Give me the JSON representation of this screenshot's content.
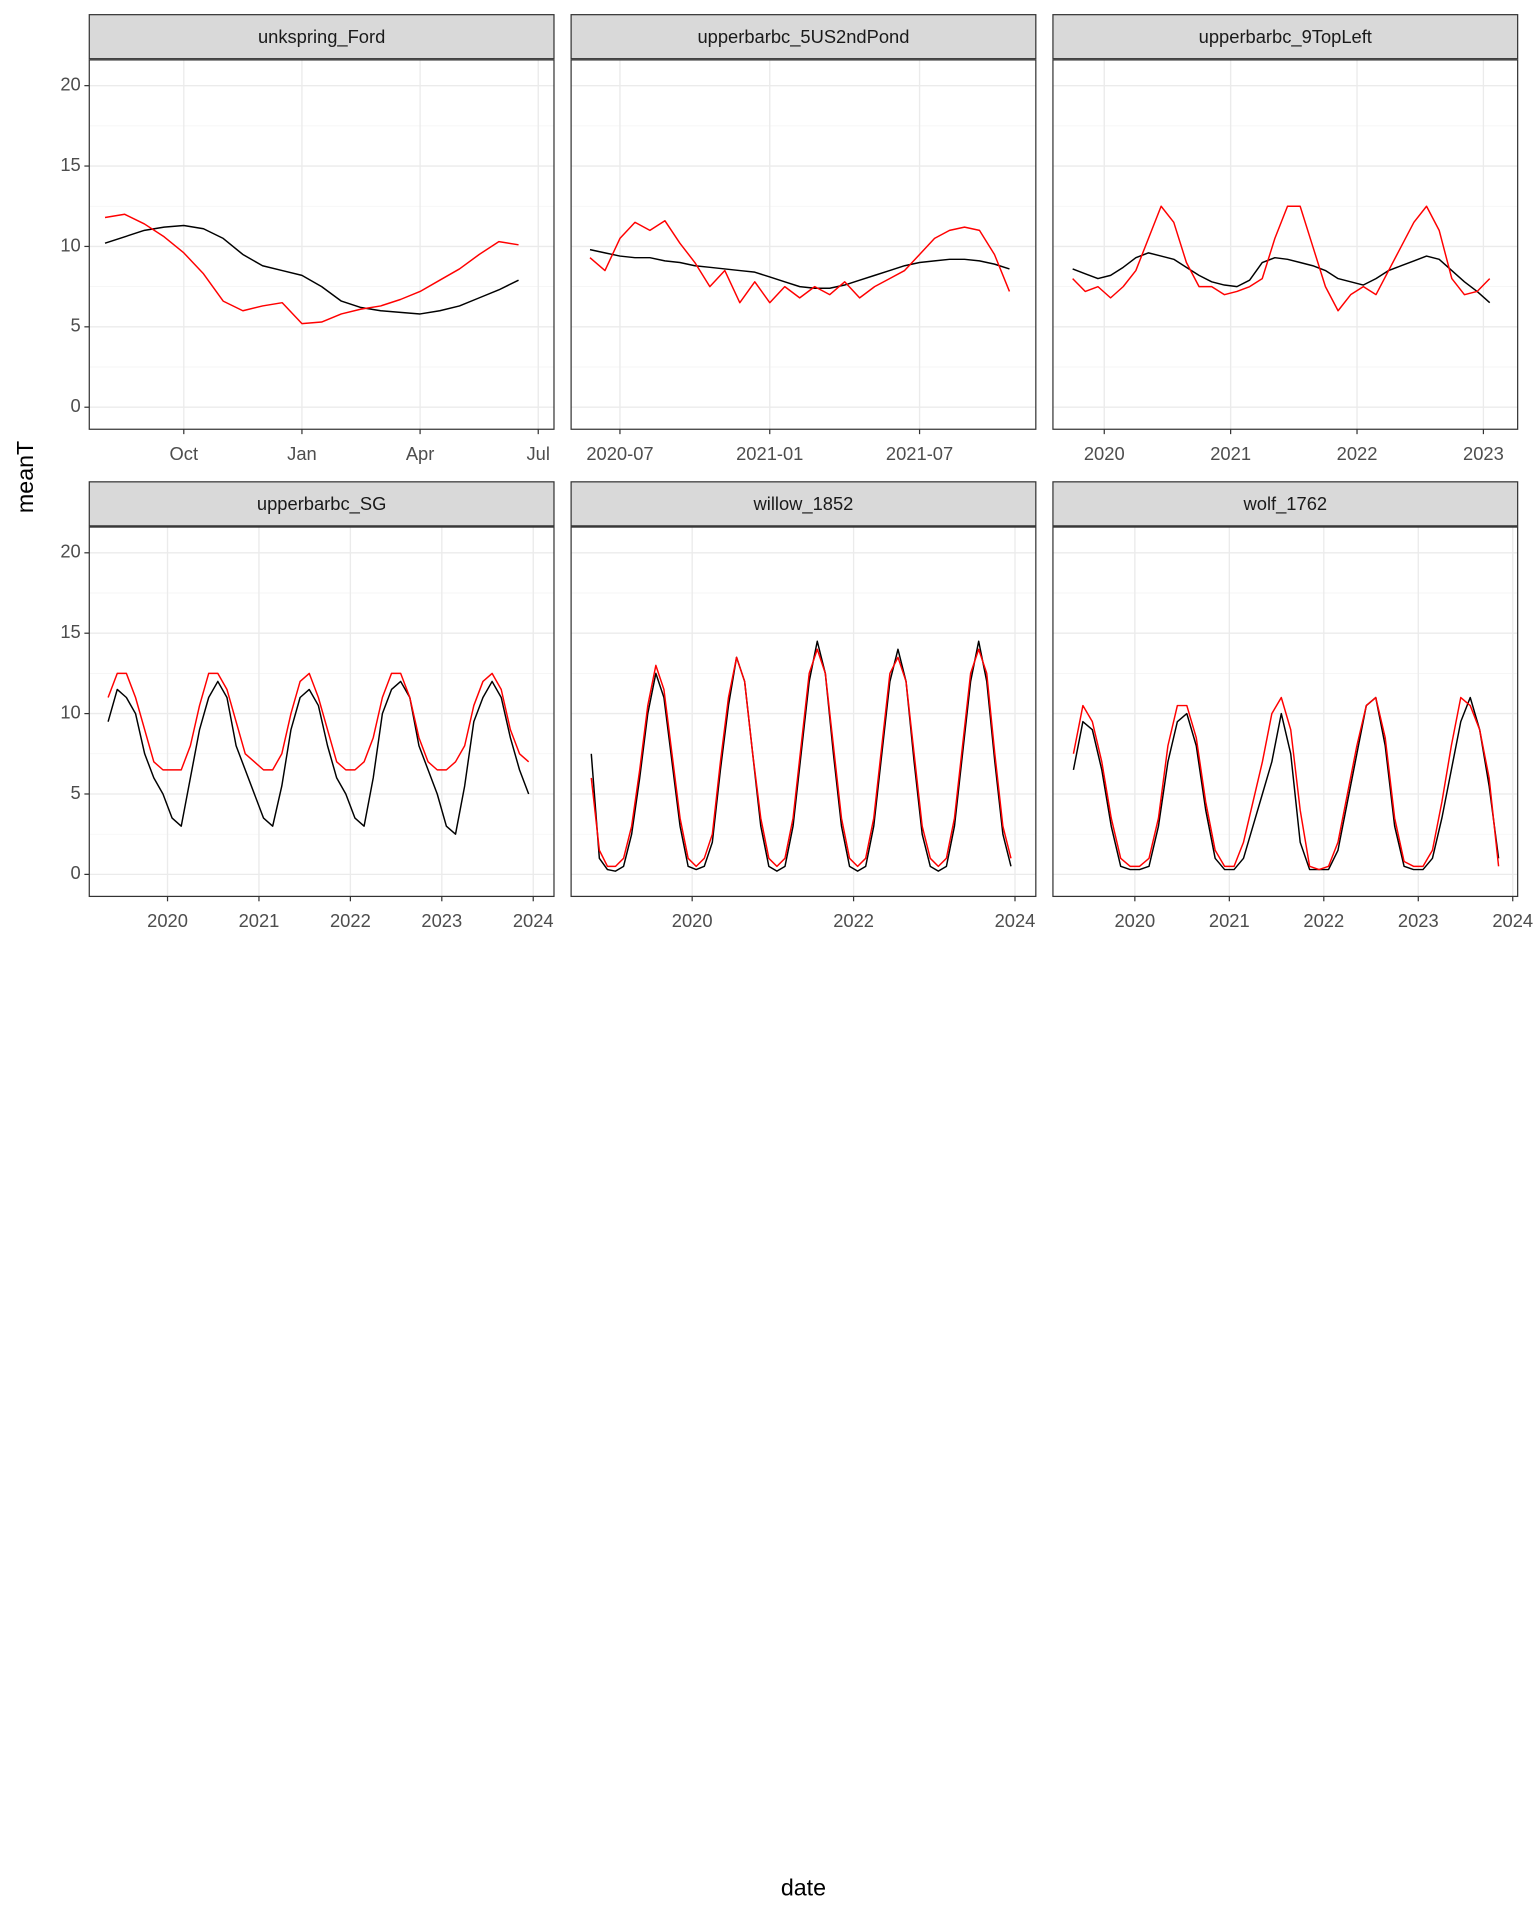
{
  "y_label": "meanT",
  "x_label": "date",
  "chart_data": [
    {
      "type": "line",
      "title": "unkspring_Ford",
      "x": [
        null,
        null,
        null,
        null,
        "Oct",
        null,
        null,
        null,
        null,
        null,
        "Jan",
        null,
        null,
        null,
        null,
        null,
        "Apr",
        null,
        null,
        null,
        null,
        null,
        "Jul"
      ],
      "ylim": [
        -1.37,
        21.6
      ],
      "yticks": [
        0,
        5,
        10,
        15,
        20
      ],
      "grid": true,
      "series": [
        {
          "color": "#000000",
          "values": [
            10.2,
            10.6,
            11.0,
            11.2,
            11.3,
            11.1,
            10.5,
            9.5,
            8.8,
            8.5,
            8.2,
            7.5,
            6.6,
            6.2,
            6.0,
            5.9,
            5.8,
            6.0,
            6.3,
            6.8,
            7.3,
            7.9,
            null
          ]
        },
        {
          "color": "#ff0000",
          "values": [
            11.8,
            12.0,
            11.4,
            10.6,
            9.6,
            8.3,
            6.6,
            6.0,
            6.3,
            6.5,
            5.2,
            5.3,
            5.8,
            6.1,
            6.3,
            6.7,
            7.2,
            7.9,
            8.6,
            9.5,
            10.3,
            10.1,
            null
          ]
        }
      ]
    },
    {
      "type": "line",
      "title": "upperbarbc_5US2ndPond",
      "x": [
        2020.4,
        2020.45,
        2020.5,
        2020.55,
        2020.6,
        2020.65,
        2020.7,
        2020.75,
        2020.8,
        2020.85,
        2020.9,
        2020.95,
        2021.0,
        2021.05,
        2021.1,
        2021.15,
        2021.2,
        2021.25,
        2021.3,
        2021.35,
        2021.4,
        2021.45,
        2021.5,
        2021.55,
        2021.6,
        2021.65,
        2021.7,
        2021.75,
        2021.8
      ],
      "xlim": [
        2020.337,
        2021.888
      ],
      "xticks": [
        {
          "value": 2020.5,
          "label": "2020-07"
        },
        {
          "value": 2021.0,
          "label": "2021-01"
        },
        {
          "value": 2021.5,
          "label": "2021-07"
        }
      ],
      "ylim": [
        -1.37,
        21.6
      ],
      "yticks": [
        0,
        5,
        10,
        15,
        20
      ],
      "grid": true,
      "series": [
        {
          "color": "#000000",
          "values": [
            9.8,
            9.6,
            9.4,
            9.3,
            9.3,
            9.1,
            9.0,
            8.8,
            8.7,
            8.6,
            8.5,
            8.4,
            8.1,
            7.8,
            7.5,
            7.4,
            7.4,
            7.6,
            7.9,
            8.2,
            8.5,
            8.8,
            9.0,
            9.1,
            9.2,
            9.2,
            9.1,
            8.9,
            8.6
          ]
        },
        {
          "color": "#ff0000",
          "values": [
            9.3,
            8.5,
            10.5,
            11.5,
            11.0,
            11.6,
            10.2,
            9.0,
            7.5,
            8.5,
            6.5,
            7.8,
            6.5,
            7.5,
            6.8,
            7.5,
            7.0,
            7.8,
            6.8,
            7.5,
            8.0,
            8.5,
            9.5,
            10.5,
            11.0,
            11.2,
            11.0,
            9.5,
            7.2
          ]
        }
      ]
    },
    {
      "type": "line",
      "title": "upperbarbc_9TopLeft",
      "x": [
        2019.75,
        2019.85,
        2019.95,
        2020.05,
        2020.15,
        2020.25,
        2020.35,
        2020.45,
        2020.55,
        2020.65,
        2020.75,
        2020.85,
        2020.95,
        2021.05,
        2021.15,
        2021.25,
        2021.35,
        2021.45,
        2021.55,
        2021.65,
        2021.75,
        2021.85,
        2021.95,
        2022.05,
        2022.15,
        2022.25,
        2022.35,
        2022.45,
        2022.55,
        2022.65,
        2022.75,
        2022.85,
        2022.95,
        2023.05
      ],
      "xlim": [
        2019.594,
        2023.271
      ],
      "xticks": [
        2020,
        2021,
        2022,
        2023
      ],
      "ylim": [
        -1.37,
        21.6
      ],
      "yticks": [
        0,
        5,
        10,
        15,
        20
      ],
      "grid": true,
      "series": [
        {
          "color": "#000000",
          "values": [
            8.6,
            8.3,
            8.0,
            8.2,
            8.7,
            9.3,
            9.6,
            9.4,
            9.2,
            8.7,
            8.2,
            7.8,
            7.6,
            7.5,
            7.9,
            9.0,
            9.3,
            9.2,
            9.0,
            8.8,
            8.5,
            8.0,
            7.8,
            7.6,
            8.0,
            8.5,
            8.8,
            9.1,
            9.4,
            9.2,
            8.5,
            7.8,
            7.2,
            6.5
          ]
        },
        {
          "color": "#ff0000",
          "values": [
            8.0,
            7.2,
            7.5,
            6.8,
            7.5,
            8.5,
            10.5,
            12.5,
            11.5,
            9.0,
            7.5,
            7.5,
            7.0,
            7.2,
            7.5,
            8.0,
            10.5,
            12.5,
            12.5,
            10.0,
            7.5,
            6.0,
            7.0,
            7.5,
            7.0,
            8.5,
            10.0,
            11.5,
            12.5,
            11.0,
            8.0,
            7.0,
            7.2,
            8.0
          ]
        }
      ]
    },
    {
      "type": "line",
      "title": "upperbarbc_SG",
      "x": [
        2019.35,
        2019.45,
        2019.55,
        2019.65,
        2019.75,
        2019.85,
        2019.95,
        2020.05,
        2020.15,
        2020.25,
        2020.35,
        2020.45,
        2020.55,
        2020.65,
        2020.75,
        2020.85,
        2020.95,
        2021.05,
        2021.15,
        2021.25,
        2021.35,
        2021.45,
        2021.55,
        2021.65,
        2021.75,
        2021.85,
        2021.95,
        2022.05,
        2022.15,
        2022.25,
        2022.35,
        2022.45,
        2022.55,
        2022.65,
        2022.75,
        2022.85,
        2022.95,
        2023.05,
        2023.15,
        2023.25,
        2023.35,
        2023.45,
        2023.55,
        2023.65,
        2023.75,
        2023.85,
        2023.95
      ],
      "xlim": [
        2019.144,
        2024.227
      ],
      "xticks": [
        2020,
        2021,
        2022,
        2023,
        2024
      ],
      "ylim": [
        -1.37,
        21.6
      ],
      "yticks": [
        0,
        5,
        10,
        15,
        20
      ],
      "grid": true,
      "series": [
        {
          "color": "#000000",
          "values": [
            9.5,
            11.5,
            11.0,
            10.0,
            7.5,
            6.0,
            5.0,
            3.5,
            3.0,
            6.0,
            9.0,
            11.0,
            12.0,
            11.0,
            8.0,
            6.5,
            5.0,
            3.5,
            3.0,
            5.5,
            9.0,
            11.0,
            11.5,
            10.5,
            8.0,
            6.0,
            5.0,
            3.5,
            3.0,
            6.0,
            10.0,
            11.5,
            12.0,
            11.0,
            8.0,
            6.5,
            5.0,
            3.0,
            2.5,
            5.5,
            9.5,
            11.0,
            12.0,
            11.0,
            8.5,
            6.5,
            5.0
          ]
        },
        {
          "color": "#ff0000",
          "values": [
            11.0,
            12.5,
            12.5,
            11.0,
            9.0,
            7.0,
            6.5,
            6.5,
            6.5,
            8.0,
            10.5,
            12.5,
            12.5,
            11.5,
            9.5,
            7.5,
            7.0,
            6.5,
            6.5,
            7.5,
            10.0,
            12.0,
            12.5,
            11.0,
            9.0,
            7.0,
            6.5,
            6.5,
            7.0,
            8.5,
            11.0,
            12.5,
            12.5,
            11.0,
            8.5,
            7.0,
            6.5,
            6.5,
            7.0,
            8.0,
            10.5,
            12.0,
            12.5,
            11.5,
            9.0,
            7.5,
            7.0
          ]
        }
      ]
    },
    {
      "type": "line",
      "title": "willow_1852",
      "x": [
        2018.75,
        2018.85,
        2018.95,
        2019.05,
        2019.15,
        2019.25,
        2019.35,
        2019.45,
        2019.55,
        2019.65,
        2019.75,
        2019.85,
        2019.95,
        2020.05,
        2020.15,
        2020.25,
        2020.35,
        2020.45,
        2020.55,
        2020.65,
        2020.75,
        2020.85,
        2020.95,
        2021.05,
        2021.15,
        2021.25,
        2021.35,
        2021.45,
        2021.55,
        2021.65,
        2021.75,
        2021.85,
        2021.95,
        2022.05,
        2022.15,
        2022.25,
        2022.35,
        2022.45,
        2022.55,
        2022.65,
        2022.75,
        2022.85,
        2022.95,
        2023.05,
        2023.15,
        2023.25,
        2023.35,
        2023.45,
        2023.55,
        2023.65,
        2023.75,
        2023.85,
        2023.95
      ],
      "xlim": [
        2018.5,
        2024.258
      ],
      "xticks": [
        2020,
        2022,
        2024
      ],
      "ylim": [
        -1.37,
        21.6
      ],
      "yticks": [
        0,
        5,
        10,
        15,
        20
      ],
      "grid": true,
      "series": [
        {
          "color": "#000000",
          "values": [
            7.5,
            1.0,
            0.3,
            0.2,
            0.5,
            2.5,
            6.0,
            10.0,
            12.5,
            11.0,
            7.0,
            3.0,
            0.5,
            0.3,
            0.5,
            2.0,
            6.5,
            10.5,
            13.5,
            12.0,
            7.5,
            3.0,
            0.5,
            0.2,
            0.5,
            3.0,
            7.5,
            12.0,
            14.5,
            12.5,
            7.5,
            3.0,
            0.5,
            0.2,
            0.5,
            3.0,
            7.5,
            12.0,
            14.0,
            12.0,
            7.0,
            2.5,
            0.5,
            0.2,
            0.5,
            3.0,
            7.5,
            12.0,
            14.5,
            12.0,
            7.0,
            2.5,
            0.5
          ]
        },
        {
          "color": "#ff0000",
          "values": [
            6.0,
            1.5,
            0.5,
            0.5,
            1.0,
            3.0,
            6.5,
            10.5,
            13.0,
            11.5,
            7.5,
            3.5,
            1.0,
            0.5,
            1.0,
            2.5,
            7.0,
            11.0,
            13.5,
            12.0,
            7.5,
            3.5,
            1.0,
            0.5,
            1.0,
            3.5,
            8.0,
            12.5,
            14.0,
            12.5,
            8.0,
            3.5,
            1.0,
            0.5,
            1.0,
            3.5,
            8.0,
            12.5,
            13.5,
            12.0,
            7.5,
            3.0,
            1.0,
            0.5,
            1.0,
            3.5,
            8.0,
            12.5,
            14.0,
            12.5,
            7.5,
            3.0,
            1.0
          ]
        }
      ]
    },
    {
      "type": "line",
      "title": "wolf_1762",
      "x": [
        2019.35,
        2019.45,
        2019.55,
        2019.65,
        2019.75,
        2019.85,
        2019.95,
        2020.05,
        2020.15,
        2020.25,
        2020.35,
        2020.45,
        2020.55,
        2020.65,
        2020.75,
        2020.85,
        2020.95,
        2021.05,
        2021.15,
        2021.25,
        2021.35,
        2021.45,
        2021.55,
        2021.65,
        2021.75,
        2021.85,
        2021.95,
        2022.05,
        2022.15,
        2022.25,
        2022.35,
        2022.45,
        2022.55,
        2022.65,
        2022.75,
        2022.85,
        2022.95,
        2023.05,
        2023.15,
        2023.25,
        2023.35,
        2023.45,
        2023.55,
        2023.65,
        2023.75,
        2023.85
      ],
      "xlim": [
        2019.133,
        2024.052
      ],
      "xticks": [
        2020,
        2021,
        2022,
        2023,
        2024
      ],
      "ylim": [
        -1.37,
        21.6
      ],
      "yticks": [
        0,
        5,
        10,
        15,
        20
      ],
      "grid": true,
      "series": [
        {
          "color": "#000000",
          "values": [
            6.5,
            9.5,
            9.0,
            6.5,
            3.0,
            0.5,
            0.3,
            0.3,
            0.5,
            3.0,
            7.0,
            9.5,
            10.0,
            8.0,
            4.0,
            1.0,
            0.3,
            0.3,
            1.0,
            3.0,
            5.0,
            7.0,
            10.0,
            7.5,
            2.0,
            0.3,
            0.3,
            0.3,
            1.5,
            4.5,
            7.5,
            10.5,
            11.0,
            8.0,
            3.0,
            0.5,
            0.3,
            0.3,
            1.0,
            3.5,
            6.5,
            9.5,
            11.0,
            9.0,
            5.5,
            1.0
          ]
        },
        {
          "color": "#ff0000",
          "values": [
            7.5,
            10.5,
            9.5,
            7.0,
            3.5,
            1.0,
            0.5,
            0.5,
            1.0,
            3.5,
            8.0,
            10.5,
            10.5,
            8.5,
            4.5,
            1.5,
            0.5,
            0.5,
            2.0,
            4.5,
            7.0,
            10.0,
            11.0,
            9.0,
            4.0,
            0.5,
            0.3,
            0.5,
            2.0,
            5.0,
            8.0,
            10.5,
            11.0,
            8.5,
            3.5,
            0.8,
            0.5,
            0.5,
            1.5,
            4.5,
            8.0,
            11.0,
            10.5,
            9.0,
            6.0,
            0.5
          ]
        }
      ]
    }
  ]
}
